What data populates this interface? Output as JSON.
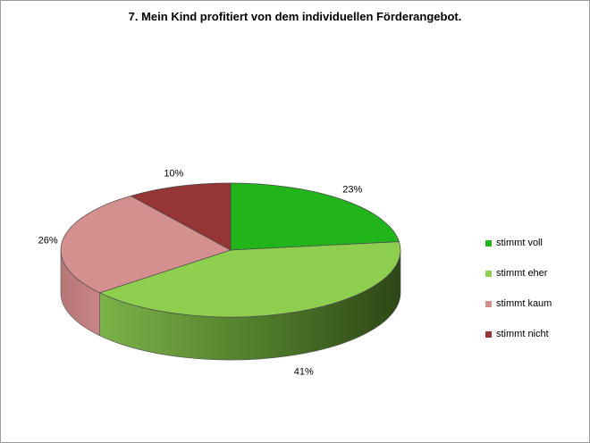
{
  "chart_data": {
    "type": "pie",
    "title": "7. Mein Kind profitiert von dem individuellen Förderangebot.",
    "categories": [
      "stimmt voll",
      "stimmt eher",
      "stimmt kaum",
      "stimmt nicht"
    ],
    "values": [
      23,
      41,
      26,
      10
    ],
    "data_labels": [
      "23%",
      "41%",
      "26%",
      "10%"
    ],
    "colors": [
      "#21b41b",
      "#8ecf50",
      "#d48f8f",
      "#953535"
    ],
    "side_colors": [
      "#127512",
      "#557c2e",
      "#9c6565",
      "#5c1f1f"
    ],
    "legend_position": "right",
    "three_d": true
  }
}
